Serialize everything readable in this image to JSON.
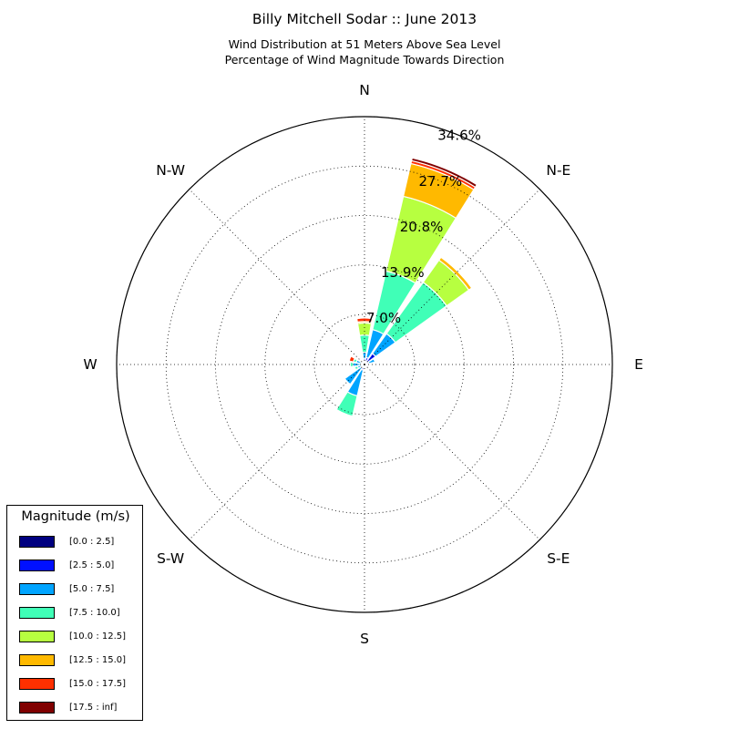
{
  "chart_data": {
    "type": "windrose",
    "title": "Billy Mitchell Sodar :: June 2013",
    "subtitle_lines": [
      "Wind Distribution at 51 Meters Above Sea Level",
      "Percentage of Wind Magnitude Towards Direction"
    ],
    "directions": [
      "N",
      "N-E",
      "E",
      "S-E",
      "S",
      "S-W",
      "W",
      "N-W"
    ],
    "radial_ticks": [
      7.0,
      13.9,
      20.8,
      27.7,
      34.6
    ],
    "radial_tick_labels": [
      "7.0%",
      "13.9%",
      "20.8%",
      "27.7%",
      "34.6%"
    ],
    "radial_max": 34.6,
    "grid": true,
    "legend_title": "Magnitude (m/s)",
    "legend_position": "bottom-left",
    "bins": [
      {
        "label": "[0.0 : 2.5]",
        "color": "#000080"
      },
      {
        "label": "[2.5 : 5.0]",
        "color": "#0010ff"
      },
      {
        "label": "[5.0 : 7.5]",
        "color": "#00a4ff"
      },
      {
        "label": "[7.5 : 10.0]",
        "color": "#40ffb7"
      },
      {
        "label": "[10.0 : 12.5]",
        "color": "#b7ff40"
      },
      {
        "label": "[12.5 : 15.0]",
        "color": "#ffb900"
      },
      {
        "label": "[15.0 : 17.5]",
        "color": "#ff3000"
      },
      {
        "label": "[17.5 : inf]",
        "color": "#800000"
      }
    ],
    "sectors": [
      {
        "direction_deg": 0,
        "cumulative": [
          0.4,
          0.8,
          1.7,
          4.1,
          5.8,
          6.0,
          6.5,
          6.6
        ]
      },
      {
        "direction_deg": 22.5,
        "cumulative": [
          0.5,
          1.0,
          5.0,
          13.4,
          24.1,
          28.8,
          29.2,
          29.6
        ]
      },
      {
        "direction_deg": 45,
        "cumulative": [
          0.4,
          1.9,
          5.3,
          14.1,
          17.9,
          18.4,
          18.5,
          18.5
        ]
      },
      {
        "direction_deg": 67.5,
        "cumulative": [
          0.3,
          0.6,
          1.5,
          1.5,
          1.5,
          1.5,
          1.5,
          1.5
        ]
      },
      {
        "direction_deg": 90,
        "cumulative": [
          0.1,
          0.2,
          0.4,
          0.4,
          0.4,
          0.4,
          0.4,
          0.4
        ]
      },
      {
        "direction_deg": 112.5,
        "cumulative": [
          0.1,
          0.2,
          0.3,
          0.3,
          0.3,
          0.3,
          0.3,
          0.3
        ]
      },
      {
        "direction_deg": 135,
        "cumulative": [
          0.1,
          0.1,
          0.2,
          0.2,
          0.2,
          0.2,
          0.2,
          0.2
        ]
      },
      {
        "direction_deg": 157.5,
        "cumulative": [
          0.1,
          0.1,
          0.2,
          0.2,
          0.2,
          0.2,
          0.2,
          0.2
        ]
      },
      {
        "direction_deg": 180,
        "cumulative": [
          0.1,
          0.2,
          0.3,
          0.3,
          0.3,
          0.3,
          0.3,
          0.3
        ]
      },
      {
        "direction_deg": 202.5,
        "cumulative": [
          0.3,
          0.8,
          4.5,
          7.4,
          7.4,
          7.4,
          7.4,
          7.4
        ]
      },
      {
        "direction_deg": 225,
        "cumulative": [
          0.2,
          0.6,
          3.4,
          3.4,
          3.4,
          3.4,
          3.4,
          3.4
        ]
      },
      {
        "direction_deg": 247.5,
        "cumulative": [
          0.2,
          0.4,
          1.0,
          1.4,
          1.4,
          1.4,
          1.4,
          1.4
        ]
      },
      {
        "direction_deg": 270,
        "cumulative": [
          0.2,
          0.6,
          1.6,
          2.0,
          2.0,
          2.0,
          2.0,
          2.0
        ]
      },
      {
        "direction_deg": 292.5,
        "cumulative": [
          0.1,
          0.5,
          1.2,
          1.6,
          1.6,
          1.6,
          2.2,
          2.2
        ]
      },
      {
        "direction_deg": 315,
        "cumulative": [
          0.1,
          0.3,
          0.6,
          0.6,
          0.6,
          0.6,
          0.6,
          0.6
        ]
      },
      {
        "direction_deg": 337.5,
        "cumulative": [
          0.1,
          0.2,
          0.3,
          0.3,
          0.3,
          0.3,
          0.3,
          0.3
        ]
      }
    ]
  }
}
